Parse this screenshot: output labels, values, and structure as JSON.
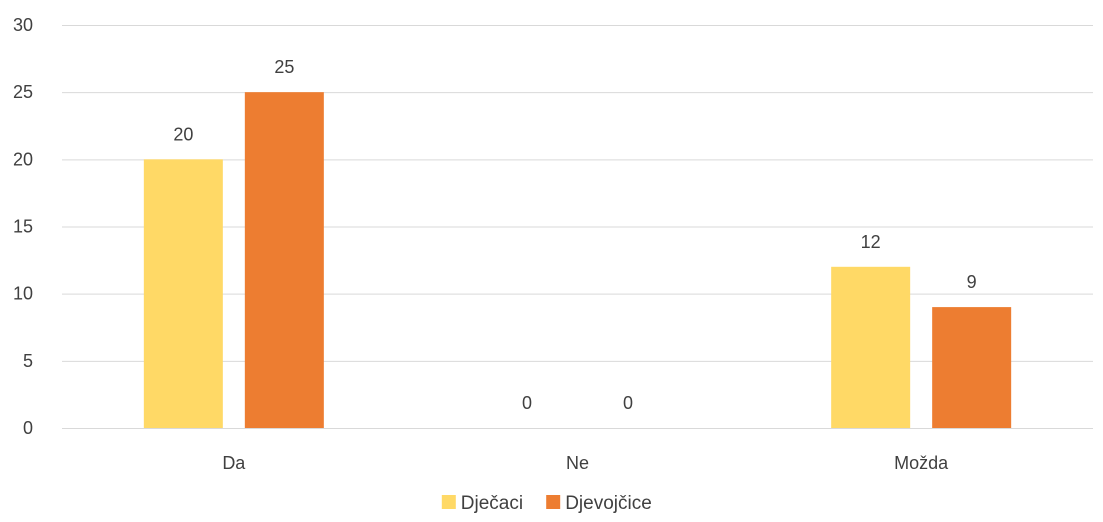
{
  "chart_data": {
    "type": "bar",
    "categories": [
      "Da",
      "Ne",
      "Možda"
    ],
    "series": [
      {
        "name": "Dječaci",
        "values": [
          20,
          0,
          12
        ],
        "color": "#FFD966"
      },
      {
        "name": "Djevojčice",
        "values": [
          25,
          0,
          9
        ],
        "color": "#ED7D31"
      }
    ],
    "ylim": [
      0,
      30
    ],
    "yticks": [
      0,
      5,
      10,
      15,
      20,
      25,
      30
    ],
    "grid": true,
    "data_labels": true,
    "legend_position": "bottom",
    "title": "",
    "xlabel": "",
    "ylabel": ""
  }
}
